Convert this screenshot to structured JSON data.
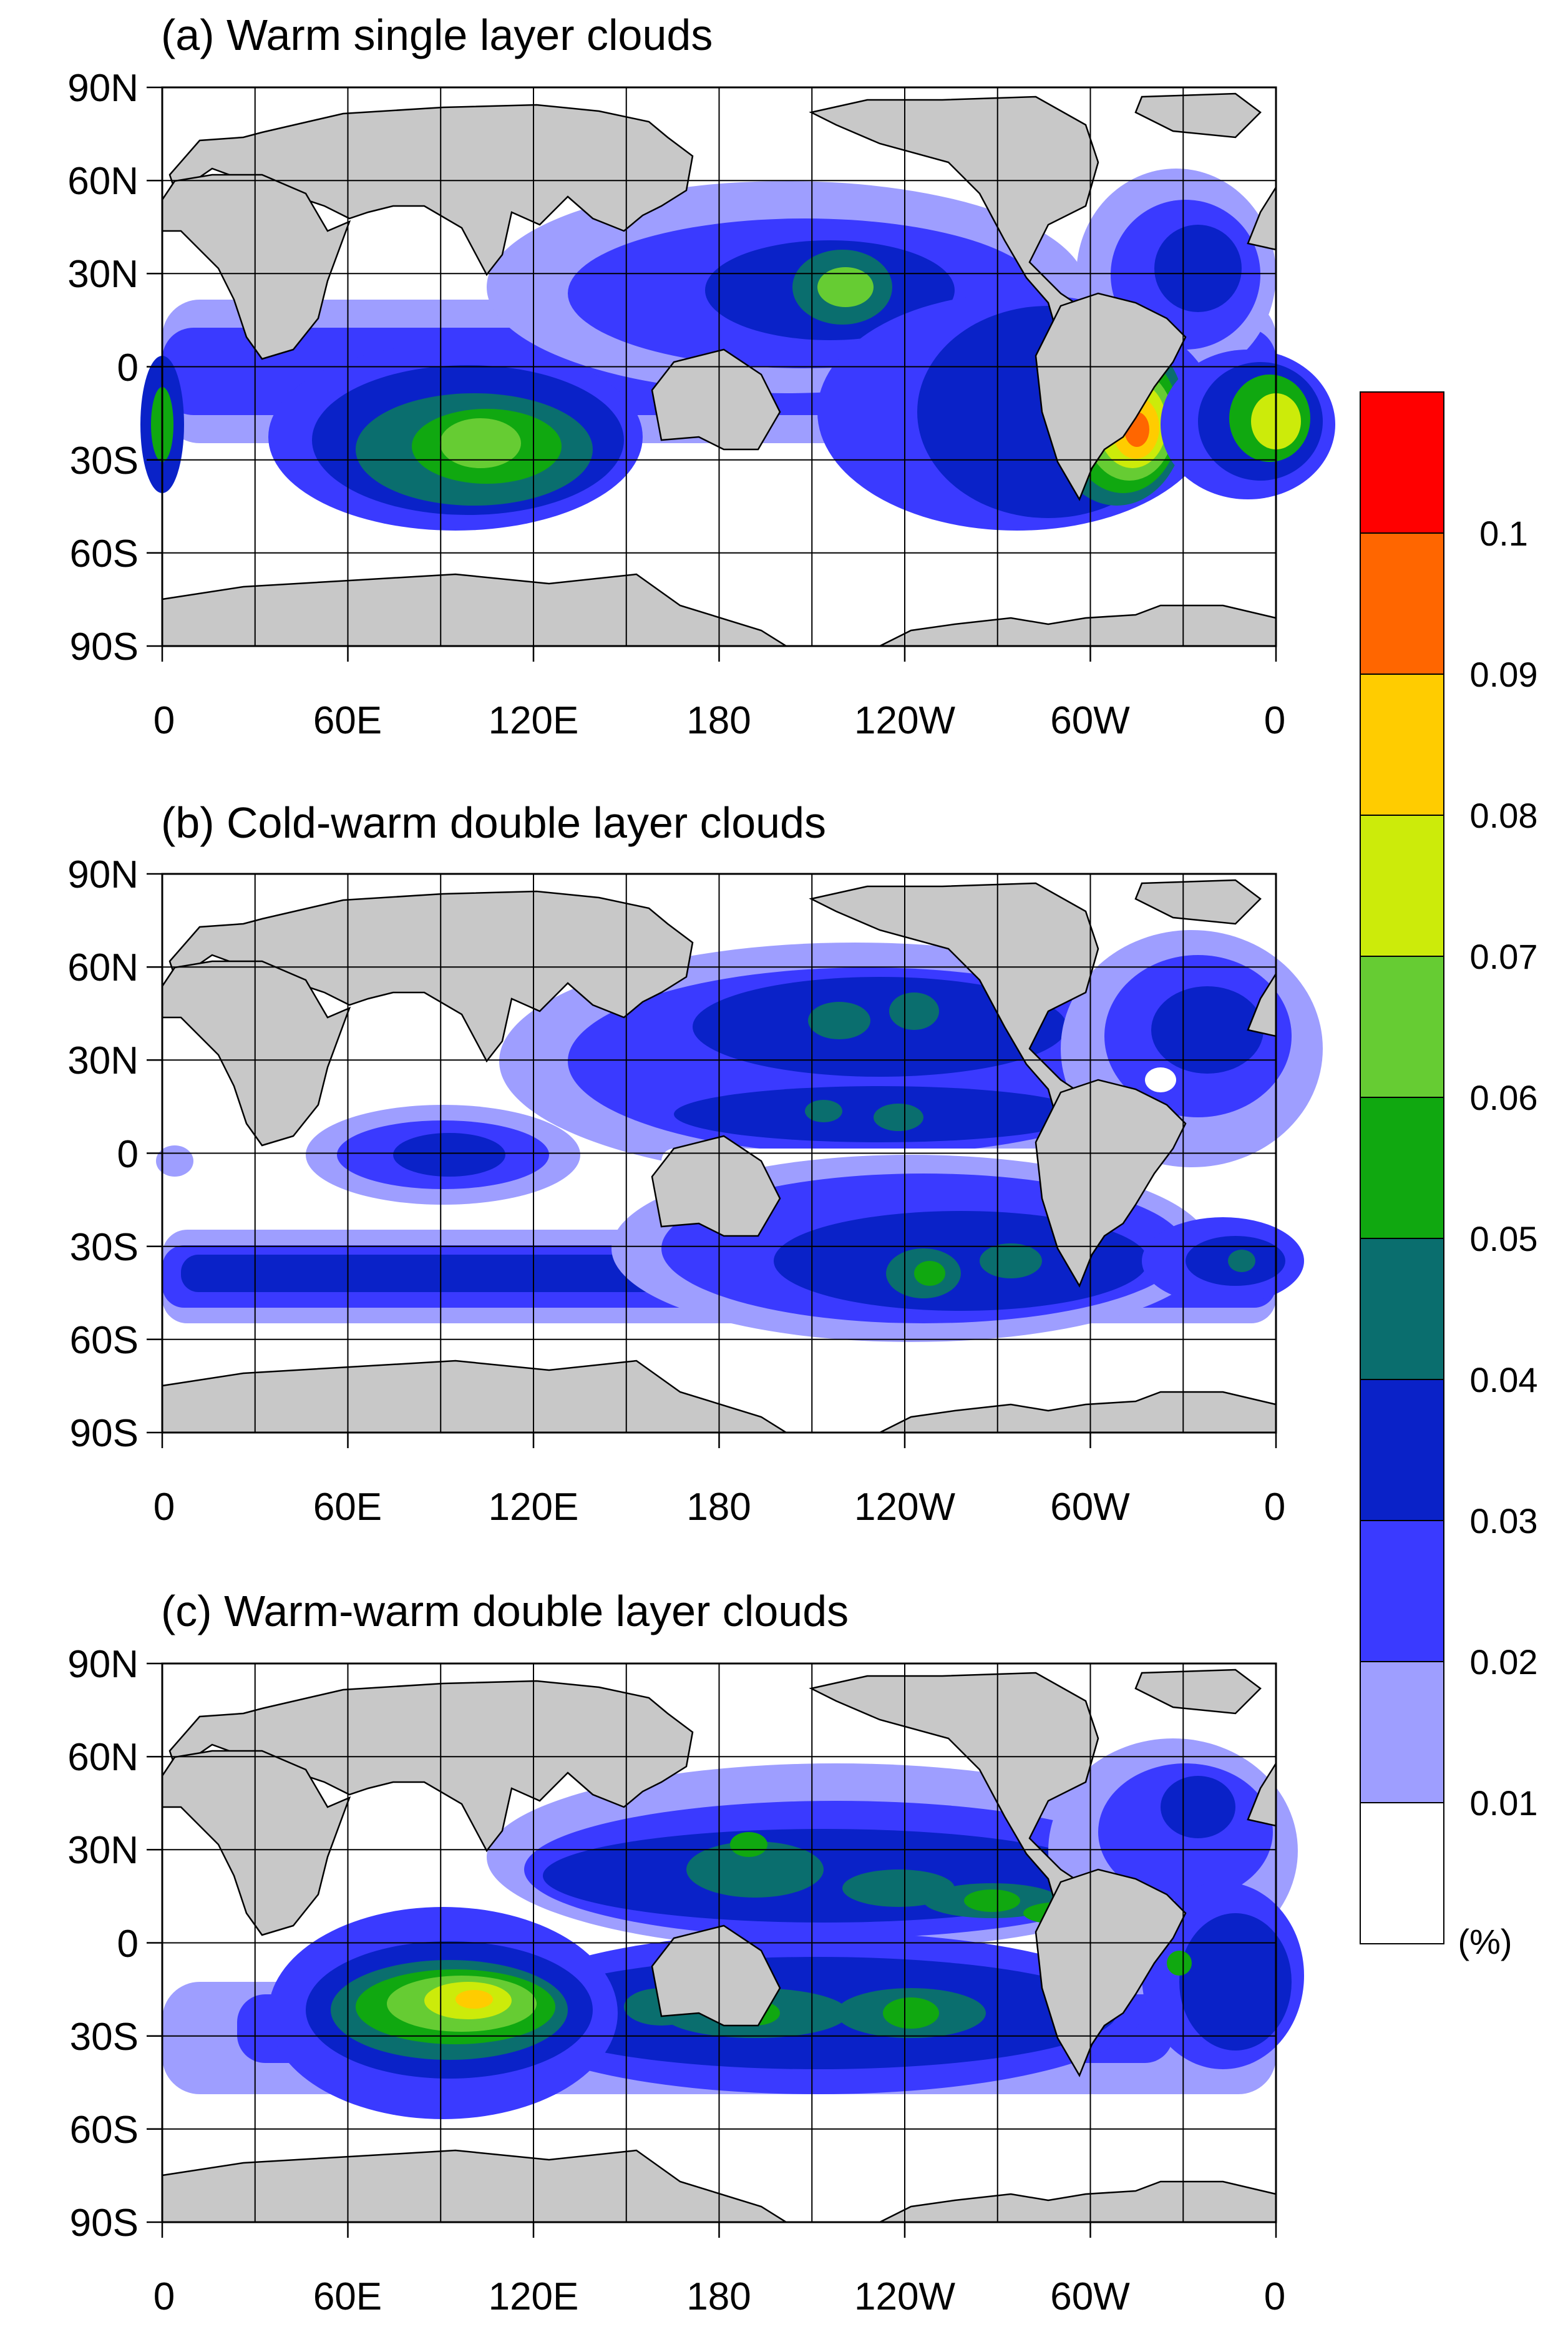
{
  "panels": [
    {
      "title": "(a) Warm single layer clouds"
    },
    {
      "title": "(b) Cold-warm double layer clouds"
    },
    {
      "title": "(c) Warm-warm double layer clouds"
    }
  ],
  "lat_labels": [
    "90N",
    "60N",
    "30N",
    "0",
    "30S",
    "60S",
    "90S"
  ],
  "lon_labels": [
    "0",
    "60E",
    "120E",
    "180",
    "120W",
    "60W",
    "0"
  ],
  "colorbar": {
    "levels": [
      "0.1",
      "0.09",
      "0.08",
      "0.07",
      "0.06",
      "0.05",
      "0.04",
      "0.03",
      "0.02",
      "0.01"
    ],
    "unit": "(%)",
    "colors_top_to_bottom": [
      "#ff0000",
      "#ff6600",
      "#ffcc00",
      "#cceb0a",
      "#66cc33",
      "#10a810",
      "#0a6e6e",
      "#0a22c8",
      "#3a3aff",
      "#9e9eff",
      "#ffffff"
    ]
  },
  "colors": {
    "land": "#c8c8c8",
    "grid": "#000000"
  }
}
